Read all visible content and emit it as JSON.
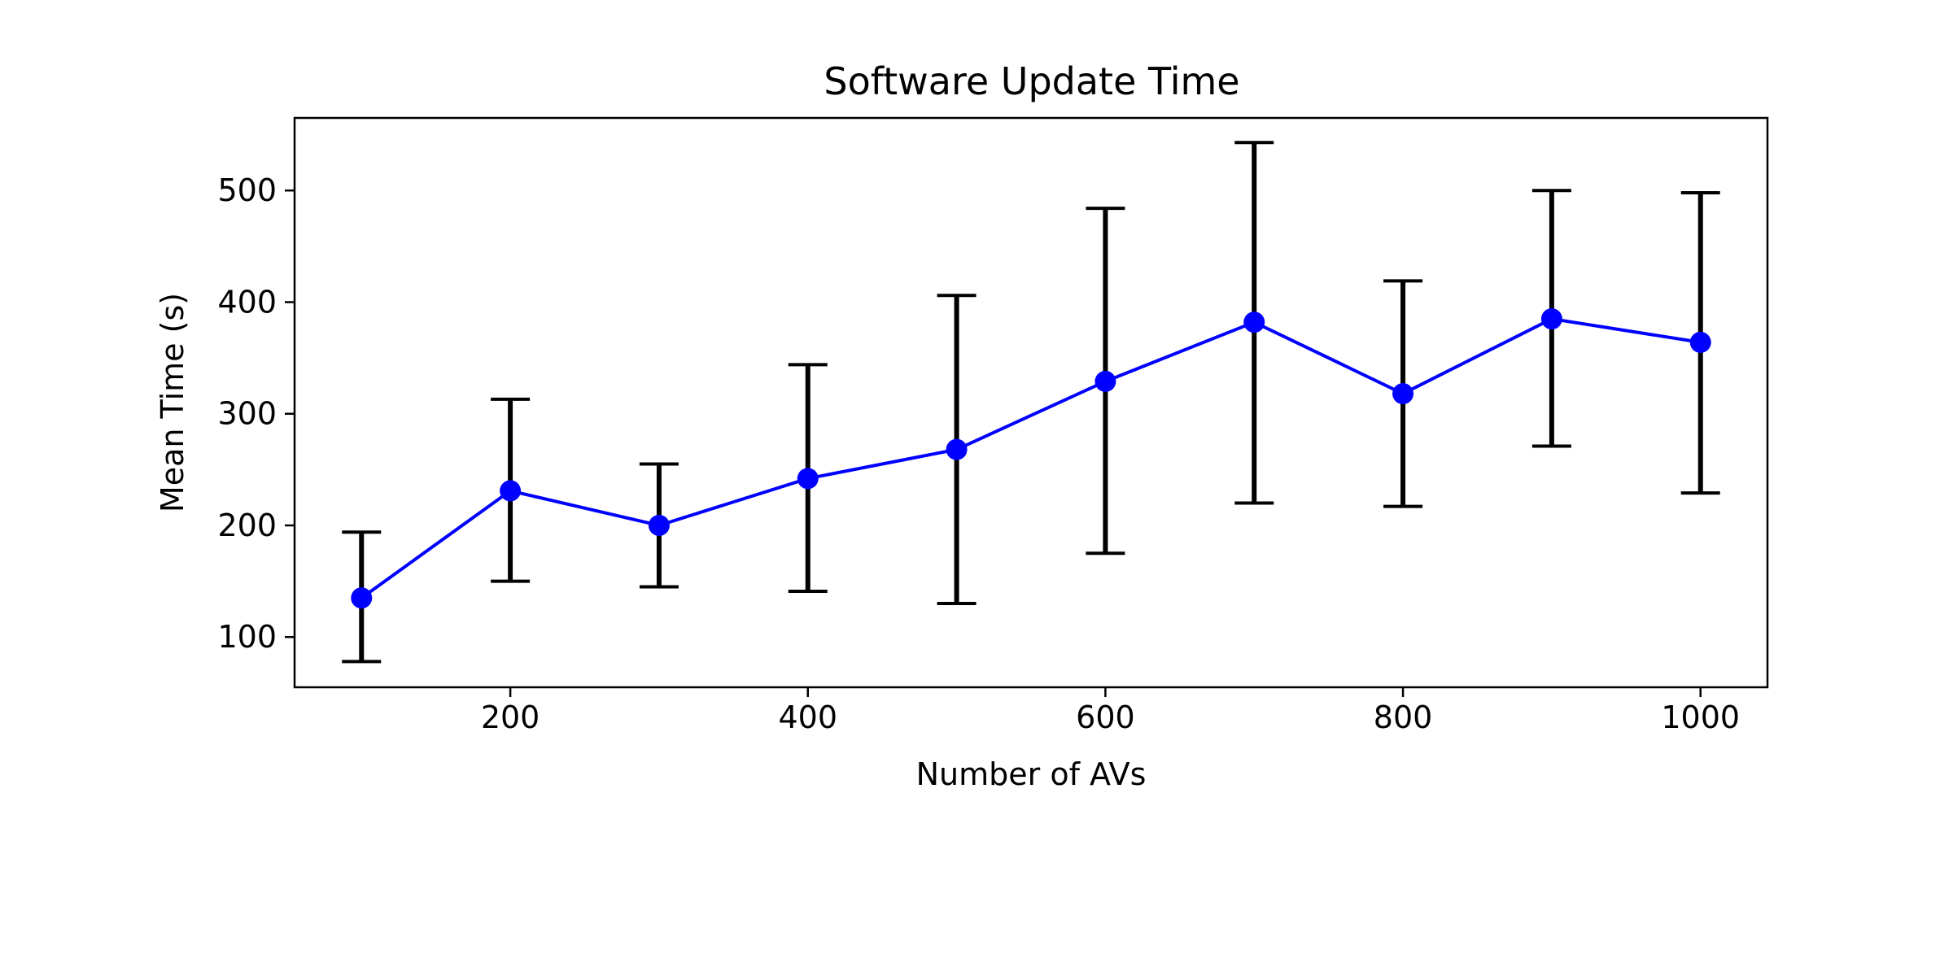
{
  "chart_data": {
    "type": "line",
    "title": "Software Update Time",
    "xlabel": "Number of AVs",
    "ylabel": "Mean Time (s)",
    "xlim": [
      55,
      1045
    ],
    "ylim": [
      55,
      565
    ],
    "xticks": [
      200,
      400,
      600,
      800,
      1000
    ],
    "yticks": [
      100,
      200,
      300,
      400,
      500
    ],
    "grid": false,
    "series": [
      {
        "x": [
          100,
          200,
          300,
          400,
          500,
          600,
          700,
          800,
          900,
          1000
        ],
        "y": [
          135,
          231,
          200,
          242,
          268,
          329,
          382,
          318,
          385,
          364
        ],
        "yerr_low": [
          78,
          150,
          145,
          141,
          130,
          175,
          220,
          217,
          271,
          229
        ],
        "yerr_high": [
          194,
          313,
          255,
          344,
          406,
          484,
          543,
          419,
          500,
          498
        ],
        "color": "#0000ff",
        "marker": "circle"
      }
    ],
    "errorbar_color": "#000000"
  }
}
